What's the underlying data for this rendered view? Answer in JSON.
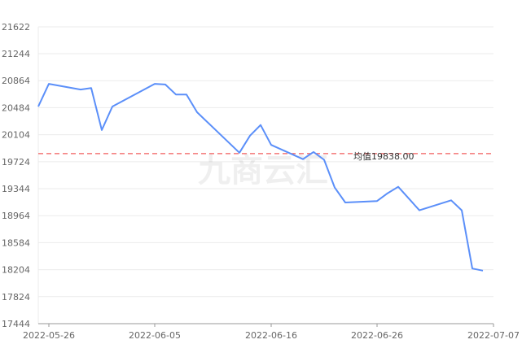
{
  "watermark": "九商云汇",
  "chart_data": {
    "type": "line",
    "grid": true,
    "ylim": [
      17444,
      21622
    ],
    "y_ticks": [
      17444,
      17824,
      18204,
      18584,
      18964,
      19344,
      19724,
      20104,
      20484,
      20864,
      21244,
      21622
    ],
    "y_tick_labels": [
      "17444",
      "17824",
      "18204",
      "18584",
      "18964",
      "19344",
      "19724",
      "20104",
      "20484",
      "20864",
      "21244",
      "21622"
    ],
    "x_ticks": [
      "2022-05-26",
      "2022-06-05",
      "2022-06-16",
      "2022-06-26",
      "2022-07-07"
    ],
    "xlim": [
      "2022-05-25",
      "2022-07-07"
    ],
    "colors": {
      "line": "#5b8ff9",
      "avg": "#f25c5c",
      "grid": "#ebebeb"
    },
    "series": [
      {
        "x": [
          "2022-05-25",
          "2022-05-26",
          "2022-05-29",
          "2022-05-30",
          "2022-05-31",
          "2022-06-01",
          "2022-06-05",
          "2022-06-06",
          "2022-06-07",
          "2022-06-08",
          "2022-06-09",
          "2022-06-13",
          "2022-06-14",
          "2022-06-15",
          "2022-06-16",
          "2022-06-19",
          "2022-06-20",
          "2022-06-21",
          "2022-06-22",
          "2022-06-23",
          "2022-06-26",
          "2022-06-27",
          "2022-06-28",
          "2022-06-30",
          "2022-07-03",
          "2022-07-04",
          "2022-07-05",
          "2022-07-06"
        ],
        "y": [
          20500,
          20820,
          20740,
          20760,
          20170,
          20500,
          20820,
          20810,
          20670,
          20670,
          20420,
          19850,
          20090,
          20240,
          19960,
          19760,
          19860,
          19750,
          19360,
          19150,
          19170,
          19280,
          19370,
          19040,
          19180,
          19040,
          18220,
          18190
        ]
      }
    ],
    "average": {
      "label": "均值19838.00",
      "value": 19838.0
    }
  }
}
